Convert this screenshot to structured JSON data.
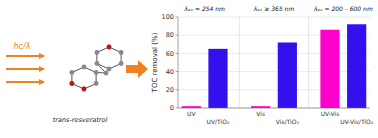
{
  "chart_data": {
    "type": "bar",
    "categories": [
      "UV",
      "UV/TiO₂",
      "Vis",
      "Vis/TiO₂",
      "UV-Vis",
      "UV-Vis/TiO₂"
    ],
    "values": [
      2,
      65,
      2,
      72,
      86,
      92
    ],
    "colors": [
      "#FF00CC",
      "#3311EE",
      "#FF00CC",
      "#3311EE",
      "#FF00CC",
      "#3311EE"
    ],
    "group_labels": [
      "λₑₓ⁣ = 254 nm",
      "λₑₓ⁣ ≥ 365 nm",
      "λₑₓ⁣ = 200 – 600 nm"
    ],
    "ylabel": "TOC removal (%)",
    "ylim": [
      0,
      100
    ],
    "yticks": [
      0,
      20,
      40,
      60,
      80,
      100
    ],
    "grid": true,
    "annotations": [
      "hc/λ",
      "trans-resveratrol"
    ]
  }
}
